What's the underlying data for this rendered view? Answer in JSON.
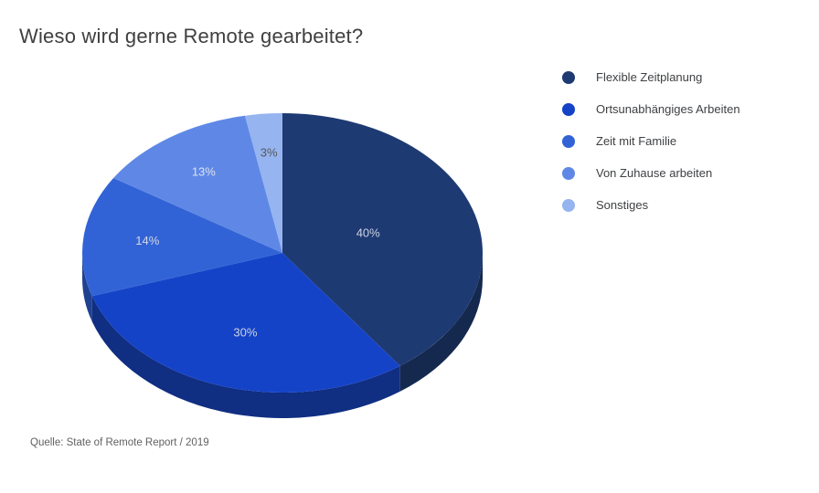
{
  "title": "Wieso wird gerne Remote gearbeitet?",
  "source": "Quelle: State of Remote Report / 2019",
  "chart_data": {
    "type": "pie",
    "style": "3d",
    "title": "Wieso wird gerne Remote gearbeitet?",
    "categories": [
      "Flexible Zeitplanung",
      "Ortsunabhängiges Arbeiten",
      "Zeit mit Familie",
      "Von Zuhause arbeiten",
      "Sonstiges"
    ],
    "values": [
      40,
      30,
      14,
      13,
      3
    ],
    "value_labels": [
      "40%",
      "30%",
      "14%",
      "13%",
      "3%"
    ],
    "colors": [
      "#1e3a73",
      "#1543c8",
      "#3263d6",
      "#5f88e6",
      "#95b4f0"
    ],
    "side_colors": [
      "#15294f",
      "#102e82",
      "#20418f",
      "#3d5ea6",
      "#6c8ec2"
    ],
    "value_label_colors": [
      "#ccd3e0",
      "#ccd3e0",
      "#d3d9e4",
      "#dde2ec",
      "#58585a"
    ],
    "label_radius": [
      0.45,
      0.6,
      0.68,
      0.7,
      0.72
    ],
    "start_angle_deg": 0,
    "direction": "clockwise",
    "legend_position": "right",
    "source": "Quelle: State of Remote Report / 2019"
  }
}
